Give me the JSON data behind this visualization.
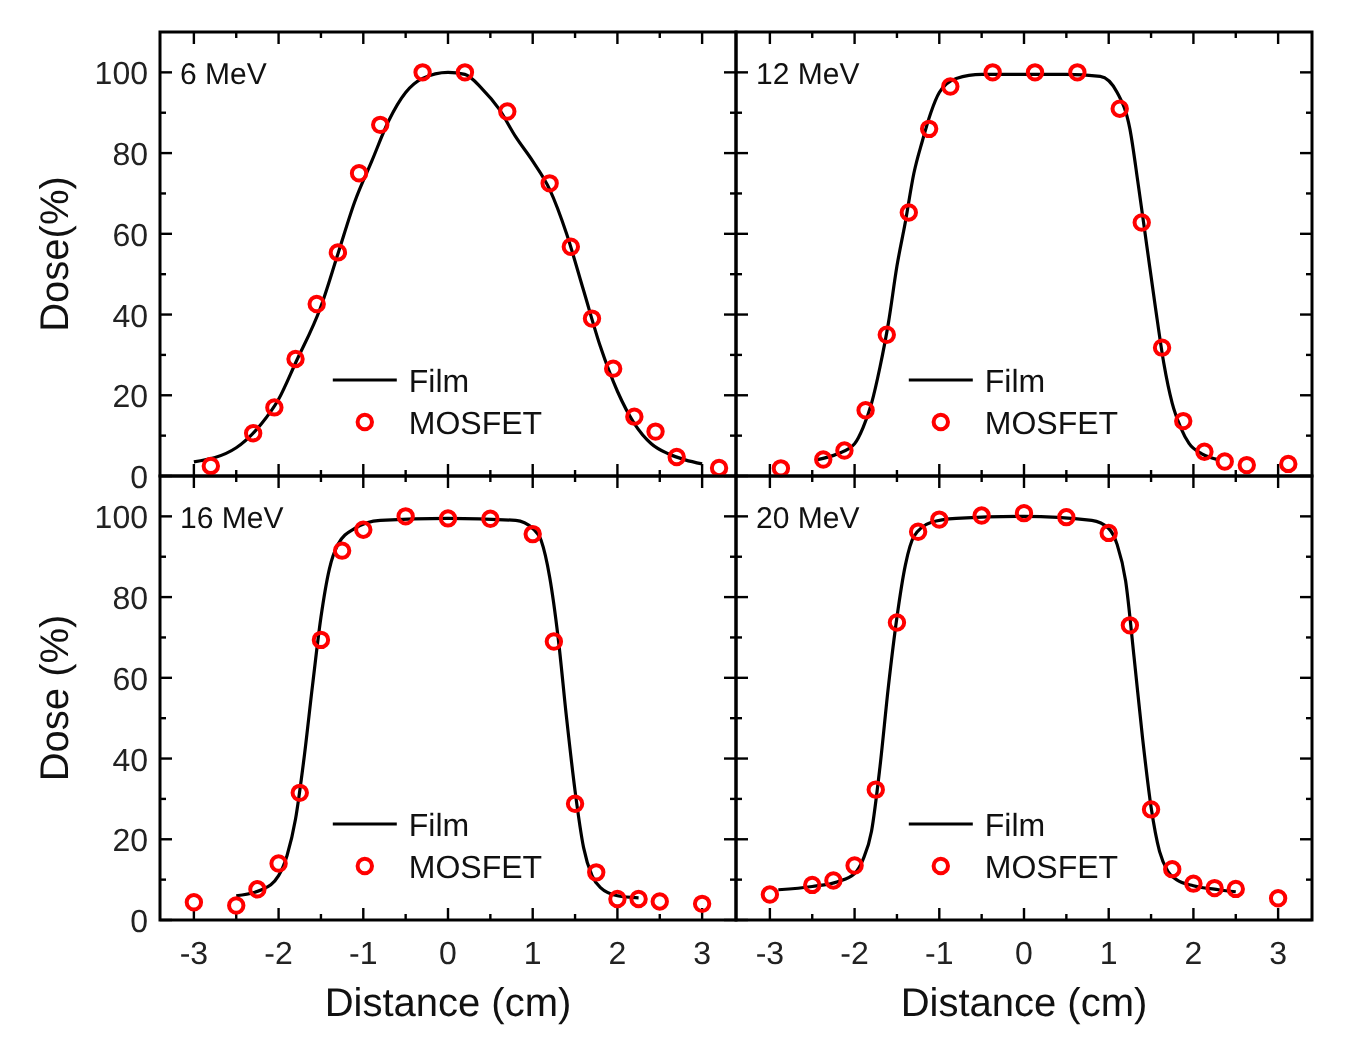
{
  "chart_data": [
    {
      "type": "line",
      "ylabel": "Dose(%)",
      "annotations": [
        "6 MeV"
      ],
      "xlim": [
        -3.4,
        3.4
      ],
      "ylim": [
        0,
        110
      ],
      "xticks": [
        -3,
        {
          "value": -2.5,
          "label": null
        },
        -2,
        {
          "value": -1.5,
          "label": null
        },
        -1,
        {
          "value": -0.5,
          "label": null
        },
        0,
        {
          "value": 0.5,
          "label": null
        },
        1,
        {
          "value": 1.5,
          "label": null
        },
        2,
        {
          "value": 2.5,
          "label": null
        },
        3
      ],
      "yticks": [
        0,
        {
          "value": 10,
          "label": null
        },
        20,
        {
          "value": 30,
          "label": null
        },
        40,
        {
          "value": 50,
          "label": null
        },
        60,
        {
          "value": 70,
          "label": null
        },
        80,
        {
          "value": 90,
          "label": null
        },
        100
      ],
      "tick_labels": "y",
      "legend": "bottom",
      "series": [
        {
          "name": "Film",
          "type": "line",
          "color": "#000000",
          "line_style": "solid",
          "marker": "none",
          "x": [
            -3,
            -2.5,
            -2.2,
            -2,
            -1.8,
            -1.5,
            -1.3,
            -1.1,
            -0.9,
            -0.7,
            -0.5,
            -0.3,
            0,
            0.2,
            0.4,
            0.6,
            0.8,
            1,
            1.2,
            1.4,
            1.6,
            1.8,
            2,
            2.2,
            2.4,
            2.6,
            2.8,
            3
          ],
          "values": [
            3.5,
            7,
            13,
            19,
            28,
            42,
            55,
            68,
            78,
            88,
            95,
            98.5,
            100,
            99.5,
            96,
            91,
            84,
            78,
            71,
            60,
            46,
            32,
            21,
            13,
            8,
            5.5,
            4,
            3
          ]
        },
        {
          "name": "MOSFET",
          "type": "scatter",
          "color": "#ff0000",
          "marker": "circle",
          "x": [
            -2.8,
            -2.3,
            -2.05,
            -1.8,
            -1.55,
            -1.3,
            -1.05,
            -0.8,
            -0.3,
            0.2,
            0.7,
            1.2,
            1.45,
            1.7,
            1.95,
            2.2,
            2.45,
            2.7,
            3.2
          ],
          "values": [
            2.5,
            10.6,
            17,
            29,
            42.6,
            55.4,
            75,
            87,
            100,
            100,
            90.3,
            72.5,
            56.8,
            39,
            26.6,
            14.7,
            11,
            4.7,
            2
          ]
        }
      ]
    },
    {
      "type": "line",
      "annotations": [
        "12 MeV"
      ],
      "xlim": [
        -3.4,
        3.4
      ],
      "ylim": [
        0,
        110
      ],
      "xticks": [
        -3,
        {
          "value": -2.5,
          "label": null
        },
        -2,
        {
          "value": -1.5,
          "label": null
        },
        -1,
        {
          "value": -0.5,
          "label": null
        },
        0,
        {
          "value": 0.5,
          "label": null
        },
        1,
        {
          "value": 1.5,
          "label": null
        },
        2,
        {
          "value": 2.5,
          "label": null
        },
        3
      ],
      "yticks": [
        0,
        {
          "value": 10,
          "label": null
        },
        20,
        {
          "value": 30,
          "label": null
        },
        40,
        {
          "value": 50,
          "label": null
        },
        60,
        {
          "value": 70,
          "label": null
        },
        80,
        {
          "value": 90,
          "label": null
        },
        100
      ],
      "tick_labels": false,
      "legend": "bottom",
      "series": [
        {
          "name": "Film",
          "type": "line",
          "color": "#000000",
          "line_style": "solid",
          "marker": "none",
          "x": [
            -2.45,
            -2.2,
            -2,
            -1.9,
            -1.8,
            -1.7,
            -1.6,
            -1.5,
            -1.4,
            -1.3,
            -1.2,
            -1.1,
            -1,
            -0.8,
            -0.5,
            0,
            0.5,
            0.9,
            1.1,
            1.25,
            1.35,
            1.45,
            1.55,
            1.65,
            1.75,
            1.85,
            1.95,
            2.1,
            2.3
          ],
          "values": [
            4,
            5.5,
            8,
            12,
            18,
            27,
            38,
            52,
            63,
            75,
            83,
            90,
            95,
            98.5,
            99.5,
            99.5,
            99.5,
            99,
            95,
            86,
            72,
            57,
            42,
            28,
            18,
            12,
            8,
            5.5,
            4
          ]
        },
        {
          "name": "MOSFET",
          "type": "scatter",
          "color": "#ff0000",
          "marker": "circle",
          "x": [
            -2.87,
            -2.37,
            -2.12,
            -1.87,
            -1.62,
            -1.36,
            -1.12,
            -0.87,
            -0.37,
            0.13,
            0.63,
            1.13,
            1.39,
            1.63,
            1.88,
            2.13,
            2.37,
            2.63,
            3.12
          ],
          "values": [
            1.9,
            4.1,
            6.3,
            16.3,
            35,
            65.3,
            86,
            96.5,
            100,
            100,
            100,
            91,
            62.8,
            31.8,
            13.6,
            6,
            3.6,
            2.7,
            3
          ]
        }
      ]
    },
    {
      "type": "line",
      "ylabel": "Dose (%)",
      "xlabel": "Distance (cm)",
      "annotations": [
        "16 MeV"
      ],
      "xlim": [
        -3.4,
        3.4
      ],
      "ylim": [
        0,
        110
      ],
      "xticks": [
        -3,
        {
          "value": -2.5,
          "label": null
        },
        -2,
        {
          "value": -1.5,
          "label": null
        },
        -1,
        {
          "value": -0.5,
          "label": null
        },
        0,
        {
          "value": 0.5,
          "label": null
        },
        1,
        {
          "value": 1.5,
          "label": null
        },
        2,
        {
          "value": 2.5,
          "label": null
        },
        3
      ],
      "yticks": [
        0,
        {
          "value": 10,
          "label": null
        },
        20,
        {
          "value": 30,
          "label": null
        },
        40,
        {
          "value": 50,
          "label": null
        },
        60,
        {
          "value": 70,
          "label": null
        },
        80,
        {
          "value": 90,
          "label": null
        },
        100
      ],
      "legend": "bottom",
      "series": [
        {
          "name": "Film",
          "type": "line",
          "color": "#000000",
          "line_style": "solid",
          "marker": "none",
          "x": [
            -2.5,
            -2.2,
            -2,
            -1.9,
            -1.8,
            -1.7,
            -1.6,
            -1.5,
            -1.4,
            -1.3,
            -1.1,
            -0.8,
            0,
            0.8,
            1,
            1.1,
            1.2,
            1.3,
            1.4,
            1.5,
            1.6,
            1.7,
            1.8,
            2,
            2.25
          ],
          "values": [
            6,
            7.5,
            11,
            16,
            25,
            40,
            58,
            75,
            87,
            93,
            97,
            99,
            99.5,
            99,
            97,
            94,
            85,
            70,
            50,
            32,
            18,
            11,
            8,
            6,
            5.5
          ]
        },
        {
          "name": "MOSFET",
          "type": "scatter",
          "color": "#ff0000",
          "marker": "circle",
          "x": [
            -3,
            -2.5,
            -2.25,
            -2,
            -1.75,
            -1.5,
            -1.25,
            -1,
            -0.5,
            0,
            0.5,
            1,
            1.25,
            1.5,
            1.75,
            2,
            2.25,
            2.5,
            3
          ],
          "values": [
            4.4,
            3.6,
            7.6,
            14,
            31.5,
            69.4,
            91.5,
            96.7,
            100,
            99.5,
            99.4,
            95.6,
            69,
            28.8,
            11.8,
            5.2,
            5.2,
            4.6,
            4
          ]
        }
      ]
    },
    {
      "type": "line",
      "xlabel": "Distance (cm)",
      "annotations": [
        "20 MeV"
      ],
      "xlim": [
        -3.4,
        3.4
      ],
      "ylim": [
        0,
        110
      ],
      "xticks": [
        -3,
        {
          "value": -2.5,
          "label": null
        },
        -2,
        {
          "value": -1.5,
          "label": null
        },
        -1,
        {
          "value": -0.5,
          "label": null
        },
        0,
        {
          "value": 0.5,
          "label": null
        },
        1,
        {
          "value": 1.5,
          "label": null
        },
        2,
        {
          "value": 2.5,
          "label": null
        },
        3
      ],
      "yticks": [
        0,
        {
          "value": 10,
          "label": null
        },
        20,
        {
          "value": 30,
          "label": null
        },
        40,
        {
          "value": 50,
          "label": null
        },
        60,
        {
          "value": 70,
          "label": null
        },
        80,
        {
          "value": 90,
          "label": null
        },
        100
      ],
      "tick_labels": "x",
      "legend": "bottom",
      "series": [
        {
          "name": "Film",
          "type": "line",
          "color": "#000000",
          "line_style": "solid",
          "marker": "none",
          "x": [
            -2.9,
            -2.5,
            -2.2,
            -2,
            -1.9,
            -1.8,
            -1.7,
            -1.6,
            -1.5,
            -1.4,
            -1.3,
            -1.1,
            -0.8,
            0,
            0.8,
            1,
            1.1,
            1.2,
            1.3,
            1.4,
            1.5,
            1.6,
            1.7,
            1.8,
            2,
            2.3,
            2.5
          ],
          "values": [
            7.5,
            8.3,
            9.5,
            11.5,
            15,
            22,
            38,
            58,
            75,
            88,
            95,
            98.5,
            99.5,
            100,
            99,
            97,
            93,
            84,
            65,
            45,
            28,
            17,
            12,
            10,
            8.5,
            7.5,
            7
          ]
        },
        {
          "name": "MOSFET",
          "type": "scatter",
          "color": "#ff0000",
          "marker": "circle",
          "x": [
            -3,
            -2.5,
            -2.25,
            -2,
            -1.75,
            -1.5,
            -1.25,
            -1,
            -0.5,
            0,
            0.5,
            1,
            1.25,
            1.5,
            1.75,
            2,
            2.25,
            2.5,
            3
          ],
          "values": [
            6.3,
            8.7,
            9.8,
            13.5,
            32.3,
            73.7,
            96.2,
            99.2,
            100.2,
            100.8,
            99.8,
            95.9,
            73,
            27.4,
            12.6,
            9,
            7.9,
            7.7,
            5.4
          ]
        }
      ]
    }
  ]
}
